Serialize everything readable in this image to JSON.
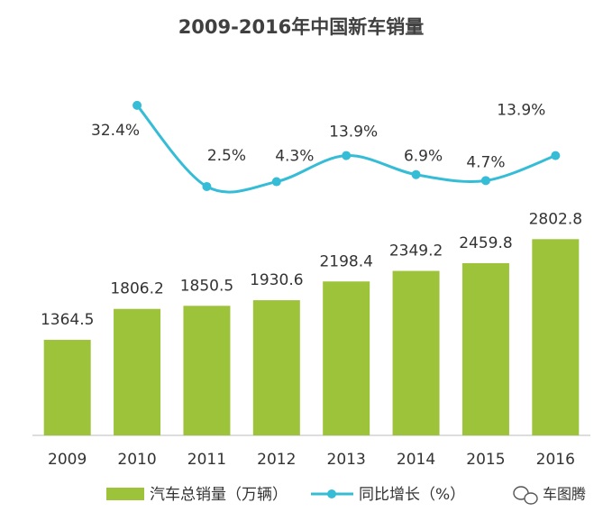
{
  "chart_data": {
    "type": "bar_line",
    "title": "2009-2016年中国新车销量",
    "categories": [
      "2009",
      "2010",
      "2011",
      "2012",
      "2013",
      "2014",
      "2015",
      "2016"
    ],
    "ylim": [
      0,
      3000
    ],
    "y2lim": [
      0,
      40
    ],
    "series": [
      {
        "name": "汽车总销量（万辆）",
        "type": "bar",
        "color": "#9dc33b",
        "values": [
          1364.5,
          1806.2,
          1850.5,
          1930.6,
          2198.4,
          2349.2,
          2459.8,
          2802.8
        ]
      },
      {
        "name": "同比增长（%）",
        "type": "line",
        "axis": "y2",
        "color": "#35bcd6",
        "values": [
          null,
          32.4,
          2.5,
          4.3,
          13.9,
          6.9,
          4.7,
          13.9
        ],
        "value_labels": [
          null,
          "32.4%",
          "2.5%",
          "4.3%",
          "13.9%",
          "6.9%",
          "4.7%",
          "13.9%"
        ]
      }
    ],
    "legend": "bottom",
    "watermark": "车图腾"
  }
}
